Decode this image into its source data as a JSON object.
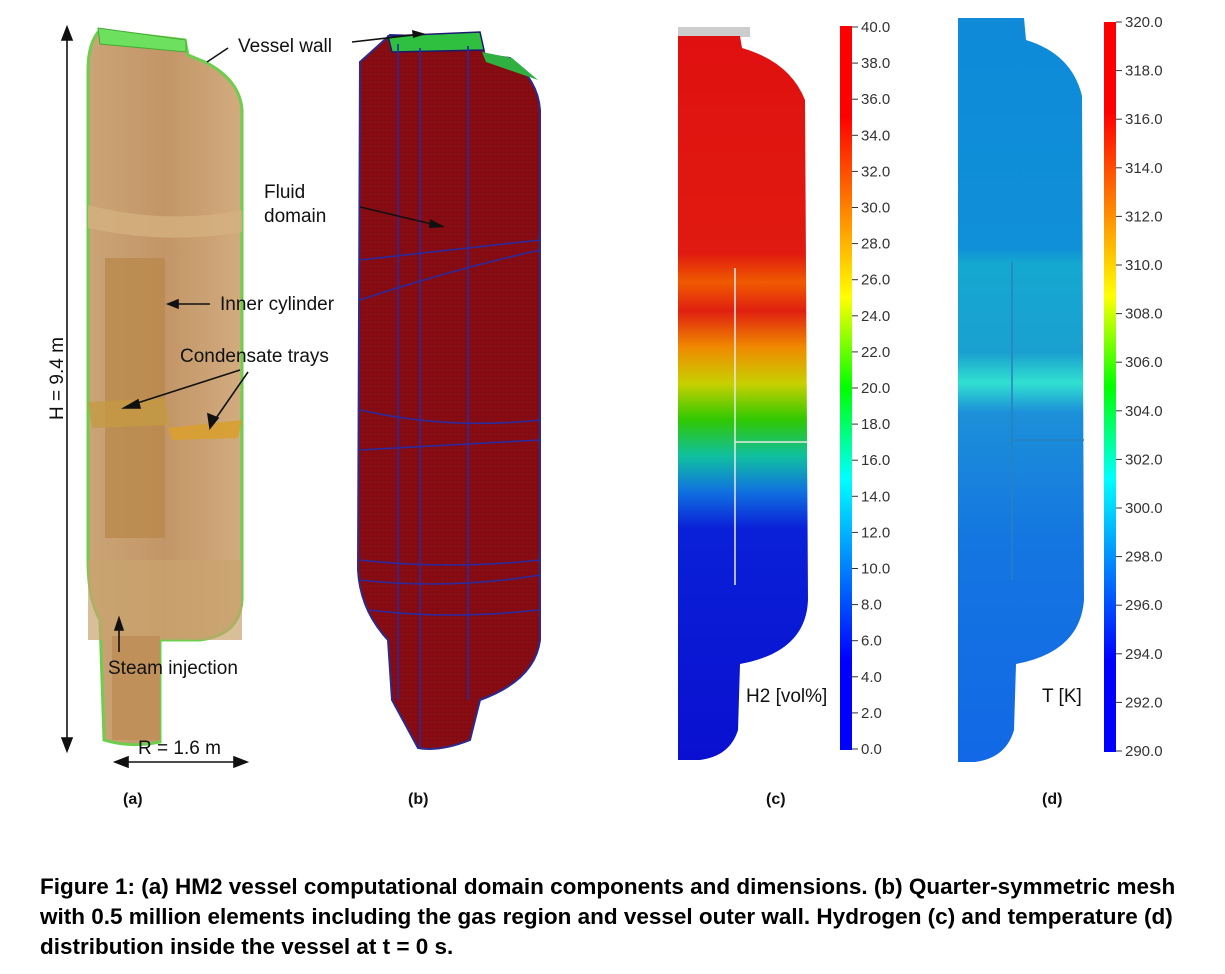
{
  "figure": {
    "panel_a": {
      "tag": "(a)",
      "labels": {
        "vessel_wall": "Vessel wall",
        "inner_cylinder": "Inner cylinder",
        "condensate_trays": "Condensate trays",
        "steam_injection": "Steam injection",
        "height": "H = 9.4 m",
        "radius": "R = 1.6 m"
      }
    },
    "panel_b": {
      "tag": "(b)",
      "labels": {
        "fluid_domain_line1": "Fluid",
        "fluid_domain_line2": "domain"
      }
    },
    "panel_c": {
      "tag": "(c)",
      "colorbar_title": "H2 [vol%]",
      "colorbar_min": 0,
      "colorbar_max": 40,
      "colorbar_ticks": [
        "40.0",
        "38.0",
        "36.0",
        "34.0",
        "32.0",
        "30.0",
        "28.0",
        "26.0",
        "24.0",
        "22.0",
        "20.0",
        "18.0",
        "16.0",
        "14.0",
        "12.0",
        "10.0",
        "8.0",
        "6.0",
        "4.0",
        "2.0",
        "0.0"
      ]
    },
    "panel_d": {
      "tag": "(d)",
      "colorbar_title": "T [K]",
      "colorbar_min": 290,
      "colorbar_max": 320,
      "colorbar_ticks": [
        "320.0",
        "318.0",
        "316.0",
        "314.0",
        "312.0",
        "310.0",
        "308.0",
        "306.0",
        "304.0",
        "302.0",
        "300.0",
        "298.0",
        "296.0",
        "294.0",
        "292.0",
        "290.0"
      ]
    },
    "colors": {
      "jet_low": "#0000ff",
      "jet_mid": "#00ff00",
      "jet_high": "#ff0000",
      "mesh_fill": "#8b0f12"
    }
  },
  "caption": {
    "number": "Figure 1:",
    "text": "(a) HM2 vessel computational domain components and dimensions. (b) Quarter-symmetric mesh with 0.5 million elements including the gas region and vessel outer wall. Hydrogen (c) and temperature (d) distribution inside the vessel at t = 0 s."
  }
}
